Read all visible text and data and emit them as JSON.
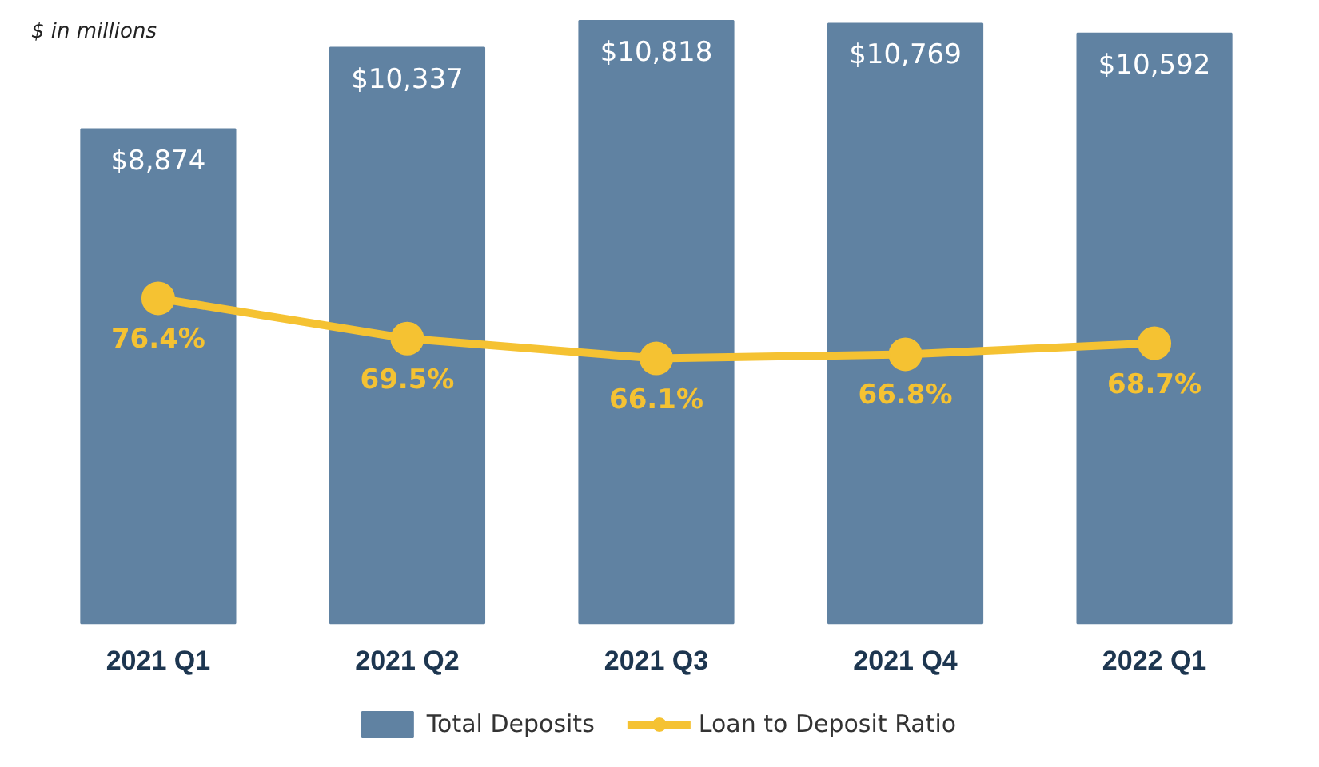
{
  "chart_data": {
    "type": "bar",
    "categories": [
      "2021 Q1",
      "2021 Q2",
      "2021 Q3",
      "2021 Q4",
      "2022 Q1"
    ],
    "series": [
      {
        "name": "Total Deposits",
        "color": "#6082a2",
        "values": [
          8874,
          10337,
          10818,
          10769,
          10592
        ],
        "value_labels": [
          "$8,874",
          "$10,337",
          "$10,818",
          "$10,769",
          "$10,592"
        ]
      },
      {
        "name": "Loan to Deposit Ratio",
        "type": "line",
        "axis": "y2",
        "color": "#f5c232",
        "marker": "circle",
        "values": [
          76.4,
          69.5,
          66.1,
          66.8,
          68.7
        ],
        "value_labels": [
          "76.4%",
          "69.5%",
          "66.1%",
          "66.8%",
          "68.7%"
        ]
      }
    ],
    "annotations": [
      "$ in millions"
    ],
    "legend": "bottom",
    "tick_labels": "x"
  }
}
